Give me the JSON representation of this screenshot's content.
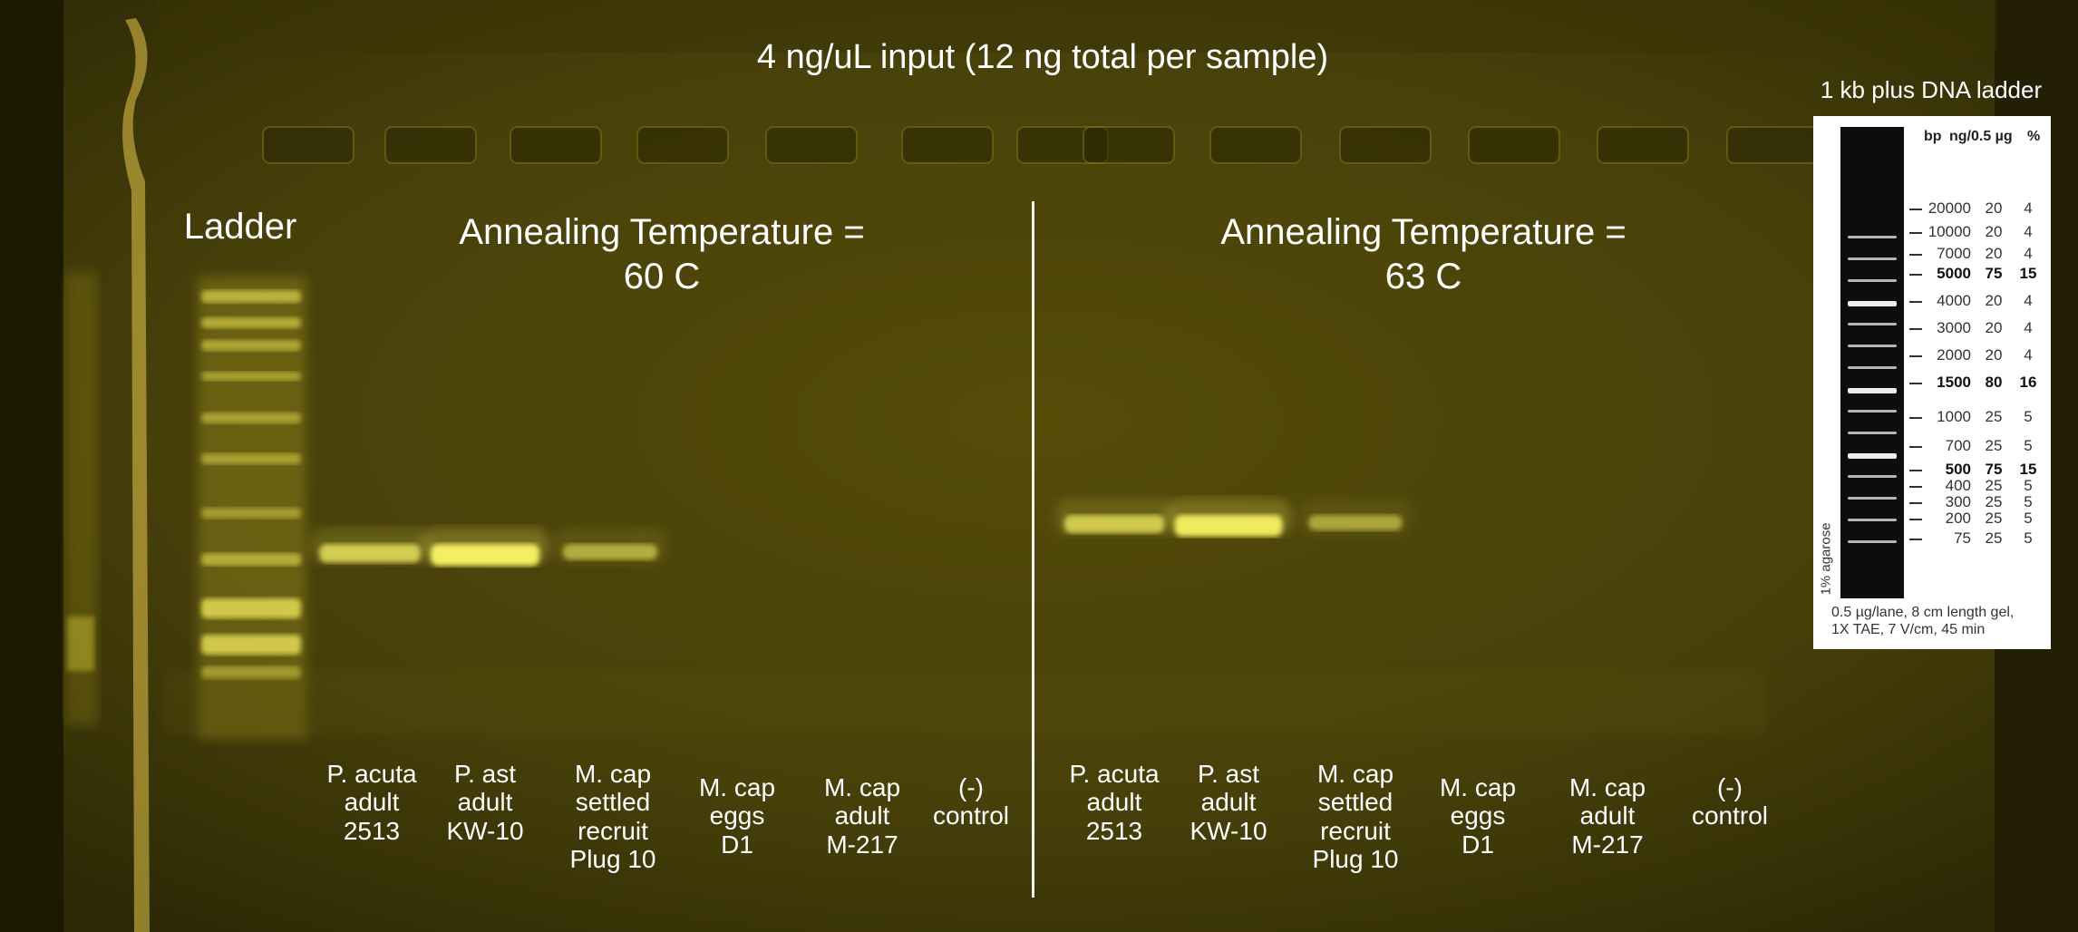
{
  "title": "4 ng/uL input (12 ng total per sample)",
  "ladder_label": "Ladder",
  "annealing": [
    {
      "label": "Annealing Temperature =\n60 C"
    },
    {
      "label": "Annealing Temperature =\n63 C"
    }
  ],
  "lanes_left": [
    {
      "label": "P. acuta\nadult\n2513",
      "band": 0.65
    },
    {
      "label": "P. ast\nadult\nKW-10",
      "band": 1.0
    },
    {
      "label": "M. cap\nsettled\nrecruit\nPlug 10",
      "band": 0.35
    },
    {
      "label": "M. cap\neggs\nD1",
      "band": 0
    },
    {
      "label": "M. cap\nadult\nM-217",
      "band": 0
    },
    {
      "label": "(-)\ncontrol",
      "band": 0
    }
  ],
  "lanes_right": [
    {
      "label": "P. acuta\nadult\n2513",
      "band": 0.6
    },
    {
      "label": "P. ast\nadult\nKW-10",
      "band": 0.95
    },
    {
      "label": "M. cap\nsettled\nrecruit\nPlug 10",
      "band": 0.3
    },
    {
      "label": "M. cap\neggs\nD1",
      "band": 0
    },
    {
      "label": "M. cap\nadult\nM-217",
      "band": 0
    },
    {
      "label": "(-)\ncontrol",
      "band": 0
    }
  ],
  "reference": {
    "title": "1 kb plus DNA ladder",
    "headers": {
      "bp": "bp",
      "ng": "ng/0.5 µg",
      "pct": "%"
    },
    "rows": [
      {
        "bp": "20000",
        "ng": "20",
        "pct": "4",
        "bold": false
      },
      {
        "bp": "10000",
        "ng": "20",
        "pct": "4",
        "bold": false
      },
      {
        "bp": "7000",
        "ng": "20",
        "pct": "4",
        "bold": false
      },
      {
        "bp": "5000",
        "ng": "75",
        "pct": "15",
        "bold": true
      },
      {
        "bp": "4000",
        "ng": "20",
        "pct": "4",
        "bold": false
      },
      {
        "bp": "3000",
        "ng": "20",
        "pct": "4",
        "bold": false
      },
      {
        "bp": "2000",
        "ng": "20",
        "pct": "4",
        "bold": false
      },
      {
        "bp": "1500",
        "ng": "80",
        "pct": "16",
        "bold": true
      },
      {
        "bp": "1000",
        "ng": "25",
        "pct": "5",
        "bold": false
      },
      {
        "bp": "700",
        "ng": "25",
        "pct": "5",
        "bold": false
      },
      {
        "bp": "500",
        "ng": "75",
        "pct": "15",
        "bold": true
      },
      {
        "bp": "400",
        "ng": "25",
        "pct": "5",
        "bold": false
      },
      {
        "bp": "300",
        "ng": "25",
        "pct": "5",
        "bold": false
      },
      {
        "bp": "200",
        "ng": "25",
        "pct": "5",
        "bold": false
      },
      {
        "bp": "75",
        "ng": "25",
        "pct": "5",
        "bold": false
      }
    ],
    "agarose": "1% agarose",
    "footnote": "0.5 µg/lane, 8 cm length gel,\n1X TAE, 7 V/cm, 45 min"
  },
  "colors": {
    "gel": "#4a4206",
    "band": "#f4ee62",
    "text": "#ffffff"
  }
}
